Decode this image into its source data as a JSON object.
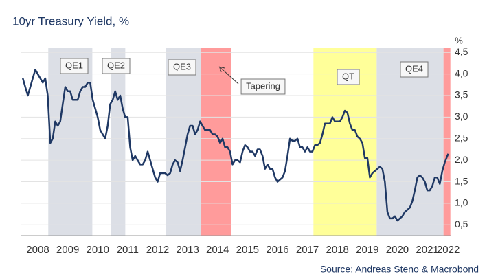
{
  "chart_data": {
    "type": "line",
    "title": "10yr Treasury Yield, %",
    "ylabel": "%",
    "source": "Source: Andreas Steno & Macrobond",
    "xlim": [
      2007.95,
      2022.3
    ],
    "xticks": [
      {
        "value": 2008.5,
        "label": "2008"
      },
      {
        "value": 2009.5,
        "label": "2009"
      },
      {
        "value": 2010.5,
        "label": "2010"
      },
      {
        "value": 2011.5,
        "label": "2011"
      },
      {
        "value": 2012.5,
        "label": "2012"
      },
      {
        "value": 2013.5,
        "label": "2013"
      },
      {
        "value": 2014.5,
        "label": "2014"
      },
      {
        "value": 2015.5,
        "label": "2015"
      },
      {
        "value": 2016.5,
        "label": "2016"
      },
      {
        "value": 2017.5,
        "label": "2017"
      },
      {
        "value": 2018.5,
        "label": "2018"
      },
      {
        "value": 2019.5,
        "label": "2019"
      },
      {
        "value": 2020.5,
        "label": "2020"
      },
      {
        "value": 2021.5,
        "label": "2021"
      },
      {
        "value": 2022.2,
        "label": "2022"
      }
    ],
    "ylim": [
      0.25,
      4.6
    ],
    "yticks": [
      {
        "value": 0.5,
        "label": "0,5"
      },
      {
        "value": 1.0,
        "label": "1,0"
      },
      {
        "value": 1.5,
        "label": "1,5"
      },
      {
        "value": 2.0,
        "label": "2,0"
      },
      {
        "value": 2.5,
        "label": "2,5"
      },
      {
        "value": 3.0,
        "label": "3,0"
      },
      {
        "value": 3.5,
        "label": "3,5"
      },
      {
        "value": 4.0,
        "label": "4,0"
      },
      {
        "value": 4.5,
        "label": "4,5"
      }
    ],
    "grid": true,
    "shaded_regions": [
      {
        "label": "QE1",
        "start": 2008.85,
        "end": 2010.32,
        "color": "#dcdfe6"
      },
      {
        "label": "QE2",
        "start": 2010.94,
        "end": 2011.42,
        "color": "#dcdfe6"
      },
      {
        "label": "QE3",
        "start": 2012.77,
        "end": 2013.94,
        "color": "#dcdfe6"
      },
      {
        "label": "Tapering",
        "start": 2013.94,
        "end": 2014.95,
        "color": "#ff9b9b"
      },
      {
        "label": "QT",
        "start": 2017.7,
        "end": 2019.81,
        "color": "#ffff99"
      },
      {
        "label": "QE4",
        "start": 2019.81,
        "end": 2022.04,
        "color": "#dcdfe6"
      },
      {
        "start": 2022.04,
        "end": 2022.27,
        "color": "#ff9b9b"
      }
    ],
    "x": [
      2008.0,
      2008.083,
      2008.167,
      2008.25,
      2008.333,
      2008.417,
      2008.5,
      2008.583,
      2008.667,
      2008.75,
      2008.833,
      2008.917,
      2009.0,
      2009.083,
      2009.167,
      2009.25,
      2009.333,
      2009.417,
      2009.5,
      2009.583,
      2009.667,
      2009.75,
      2009.833,
      2009.917,
      2010.0,
      2010.083,
      2010.167,
      2010.25,
      2010.333,
      2010.417,
      2010.5,
      2010.583,
      2010.667,
      2010.75,
      2010.833,
      2010.917,
      2011.0,
      2011.083,
      2011.167,
      2011.25,
      2011.333,
      2011.417,
      2011.5,
      2011.583,
      2011.667,
      2011.75,
      2011.833,
      2011.917,
      2012.0,
      2012.083,
      2012.167,
      2012.25,
      2012.333,
      2012.417,
      2012.5,
      2012.583,
      2012.667,
      2012.75,
      2012.833,
      2012.917,
      2013.0,
      2013.083,
      2013.167,
      2013.25,
      2013.333,
      2013.417,
      2013.5,
      2013.583,
      2013.667,
      2013.75,
      2013.833,
      2013.917,
      2014.0,
      2014.083,
      2014.167,
      2014.25,
      2014.333,
      2014.417,
      2014.5,
      2014.583,
      2014.667,
      2014.75,
      2014.833,
      2014.917,
      2015.0,
      2015.083,
      2015.167,
      2015.25,
      2015.333,
      2015.417,
      2015.5,
      2015.583,
      2015.667,
      2015.75,
      2015.833,
      2015.917,
      2016.0,
      2016.083,
      2016.167,
      2016.25,
      2016.333,
      2016.417,
      2016.5,
      2016.583,
      2016.667,
      2016.75,
      2016.833,
      2016.917,
      2017.0,
      2017.083,
      2017.167,
      2017.25,
      2017.333,
      2017.417,
      2017.5,
      2017.583,
      2017.667,
      2017.75,
      2017.833,
      2017.917,
      2018.0,
      2018.083,
      2018.167,
      2018.25,
      2018.333,
      2018.417,
      2018.5,
      2018.583,
      2018.667,
      2018.75,
      2018.833,
      2018.917,
      2019.0,
      2019.083,
      2019.167,
      2019.25,
      2019.333,
      2019.417,
      2019.5,
      2019.583,
      2019.667,
      2019.75,
      2019.833,
      2019.917,
      2020.0,
      2020.083,
      2020.167,
      2020.25,
      2020.333,
      2020.417,
      2020.5,
      2020.583,
      2020.667,
      2020.75,
      2020.833,
      2020.917,
      2021.0,
      2021.083,
      2021.167,
      2021.25,
      2021.333,
      2021.417,
      2021.5,
      2021.583,
      2021.667,
      2021.75,
      2021.833,
      2021.917,
      2022.0,
      2022.083,
      2022.167,
      2022.2
    ],
    "series": [
      {
        "name": "10yr Treasury Yield",
        "color": "#1f3864",
        "values": [
          3.9,
          3.7,
          3.5,
          3.7,
          3.9,
          4.1,
          4.0,
          3.9,
          3.8,
          3.9,
          3.5,
          2.4,
          2.5,
          2.9,
          2.8,
          2.9,
          3.3,
          3.7,
          3.6,
          3.6,
          3.4,
          3.4,
          3.4,
          3.6,
          3.7,
          3.7,
          3.8,
          3.8,
          3.4,
          3.2,
          3.0,
          2.7,
          2.6,
          2.5,
          2.8,
          3.3,
          3.4,
          3.6,
          3.4,
          3.5,
          3.2,
          3.0,
          3.0,
          2.3,
          2.0,
          2.1,
          2.0,
          1.9,
          1.9,
          2.0,
          2.2,
          2.0,
          1.8,
          1.6,
          1.5,
          1.7,
          1.7,
          1.7,
          1.65,
          1.7,
          1.9,
          2.0,
          1.95,
          1.75,
          2.0,
          2.3,
          2.6,
          2.8,
          2.8,
          2.6,
          2.7,
          2.9,
          2.8,
          2.7,
          2.7,
          2.7,
          2.6,
          2.6,
          2.55,
          2.4,
          2.5,
          2.3,
          2.3,
          2.2,
          1.9,
          2.0,
          2.0,
          1.95,
          2.2,
          2.35,
          2.3,
          2.2,
          2.2,
          2.1,
          2.25,
          2.25,
          2.1,
          1.8,
          1.9,
          1.8,
          1.8,
          1.6,
          1.5,
          1.55,
          1.6,
          1.75,
          2.1,
          2.5,
          2.45,
          2.45,
          2.5,
          2.3,
          2.3,
          2.2,
          2.3,
          2.2,
          2.2,
          2.35,
          2.35,
          2.4,
          2.6,
          2.85,
          2.85,
          2.85,
          3.0,
          2.9,
          2.9,
          2.9,
          3.0,
          3.15,
          3.1,
          2.85,
          2.7,
          2.7,
          2.55,
          2.5,
          2.4,
          2.05,
          2.05,
          1.6,
          1.7,
          1.75,
          1.8,
          1.85,
          1.8,
          1.5,
          0.8,
          0.65,
          0.65,
          0.7,
          0.6,
          0.65,
          0.7,
          0.8,
          0.85,
          0.9,
          1.05,
          1.3,
          1.6,
          1.65,
          1.6,
          1.5,
          1.3,
          1.3,
          1.4,
          1.6,
          1.6,
          1.45,
          1.75,
          1.95,
          2.1,
          2.15
        ]
      }
    ]
  }
}
